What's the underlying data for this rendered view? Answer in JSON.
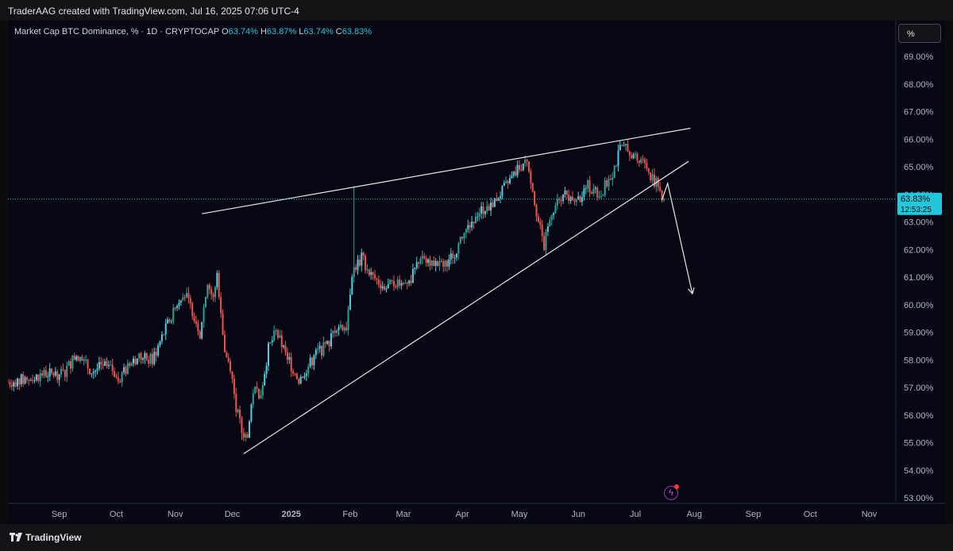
{
  "header": {
    "attribution": "TraderAAG created with TradingView.com, Jul 16, 2025 07:06 UTC-4"
  },
  "legend": {
    "symbol": "Market Cap BTC Dominance, % · 1D · CRYPTOCAP",
    "open_label": "O",
    "open": "63.74%",
    "high_label": "H",
    "high": "63.87%",
    "low_label": "L",
    "low": "63.74%",
    "close_label": "C",
    "close": "63.83%"
  },
  "scale_button": "%",
  "price_tag": {
    "price": "63.83%",
    "countdown": "12:53:25"
  },
  "footer": {
    "brand": "TradingView"
  },
  "colors": {
    "up": "#26a69a",
    "up_bright": "#4dd0e1",
    "down": "#ef5350",
    "background": "#070713",
    "accent": "#26c6da",
    "trendline": "#e6e6e6",
    "flash_icon": "#e040fb"
  },
  "icons": {
    "flash": "lightning-icon",
    "brand": "tradingview-logo-icon"
  },
  "chart_data": {
    "type": "candlestick",
    "title": "Market Cap BTC Dominance, % · 1D · CRYPTOCAP",
    "interval": "1D",
    "x_ticks": [
      "Sep",
      "Oct",
      "Nov",
      "Dec",
      "2025",
      "Feb",
      "Mar",
      "Apr",
      "May",
      "Jun",
      "Jul",
      "Aug",
      "Sep",
      "Oct",
      "Nov"
    ],
    "x_tick_dates": [
      "2024-09-01",
      "2024-10-01",
      "2024-11-01",
      "2024-12-01",
      "2025-01-01",
      "2025-02-01",
      "2025-03-01",
      "2025-04-01",
      "2025-05-01",
      "2025-06-01",
      "2025-07-01",
      "2025-08-01",
      "2025-09-01",
      "2025-10-01",
      "2025-11-01"
    ],
    "y_ticks": [
      "53.00%",
      "54.00%",
      "55.00%",
      "56.00%",
      "57.00%",
      "58.00%",
      "59.00%",
      "60.00%",
      "61.00%",
      "62.00%",
      "63.00%",
      "64.00%",
      "65.00%",
      "66.00%",
      "67.00%",
      "68.00%",
      "69.00%"
    ],
    "ylim": [
      52.8,
      70.3
    ],
    "xlim": [
      "2024-08-05",
      "2025-11-15"
    ],
    "grid": false,
    "current_price": 63.83,
    "series": [
      {
        "name": "BTC Dominance",
        "close_path": [
          {
            "x": "2024-08-05",
            "y": 57.2
          },
          {
            "x": "2024-08-15",
            "y": 57.3
          },
          {
            "x": "2024-08-25",
            "y": 57.5
          },
          {
            "x": "2024-09-03",
            "y": 57.5
          },
          {
            "x": "2024-09-10",
            "y": 58.2
          },
          {
            "x": "2024-09-18",
            "y": 57.6
          },
          {
            "x": "2024-09-25",
            "y": 57.8
          },
          {
            "x": "2024-10-03",
            "y": 57.4
          },
          {
            "x": "2024-10-12",
            "y": 58.1
          },
          {
            "x": "2024-10-20",
            "y": 58.0
          },
          {
            "x": "2024-10-28",
            "y": 59.3
          },
          {
            "x": "2024-11-05",
            "y": 60.5
          },
          {
            "x": "2024-11-10",
            "y": 59.8
          },
          {
            "x": "2024-11-14",
            "y": 59.0
          },
          {
            "x": "2024-11-18",
            "y": 60.8
          },
          {
            "x": "2024-11-21",
            "y": 60.2
          },
          {
            "x": "2024-11-23",
            "y": 61.1
          },
          {
            "x": "2024-11-25",
            "y": 59.8
          },
          {
            "x": "2024-11-27",
            "y": 58.3
          },
          {
            "x": "2024-11-30",
            "y": 57.8
          },
          {
            "x": "2024-12-03",
            "y": 56.3
          },
          {
            "x": "2024-12-06",
            "y": 55.4
          },
          {
            "x": "2024-12-09",
            "y": 55.2
          },
          {
            "x": "2024-12-12",
            "y": 56.9
          },
          {
            "x": "2024-12-16",
            "y": 56.8
          },
          {
            "x": "2024-12-20",
            "y": 58.4
          },
          {
            "x": "2024-12-24",
            "y": 59.0
          },
          {
            "x": "2024-12-28",
            "y": 58.4
          },
          {
            "x": "2025-01-01",
            "y": 57.8
          },
          {
            "x": "2025-01-05",
            "y": 57.3
          },
          {
            "x": "2025-01-10",
            "y": 57.8
          },
          {
            "x": "2025-01-15",
            "y": 58.3
          },
          {
            "x": "2025-01-20",
            "y": 58.5
          },
          {
            "x": "2025-01-25",
            "y": 59.3
          },
          {
            "x": "2025-01-30",
            "y": 59.2
          },
          {
            "x": "2025-02-02",
            "y": 61.2
          },
          {
            "x": "2025-02-07",
            "y": 61.7
          },
          {
            "x": "2025-02-13",
            "y": 61.0
          },
          {
            "x": "2025-02-20",
            "y": 60.6
          },
          {
            "x": "2025-02-27",
            "y": 60.9
          },
          {
            "x": "2025-03-05",
            "y": 60.9
          },
          {
            "x": "2025-03-10",
            "y": 61.8
          },
          {
            "x": "2025-03-15",
            "y": 61.6
          },
          {
            "x": "2025-03-20",
            "y": 61.4
          },
          {
            "x": "2025-03-26",
            "y": 61.7
          },
          {
            "x": "2025-04-01",
            "y": 62.4
          },
          {
            "x": "2025-04-08",
            "y": 63.3
          },
          {
            "x": "2025-04-15",
            "y": 63.6
          },
          {
            "x": "2025-04-22",
            "y": 64.1
          },
          {
            "x": "2025-04-28",
            "y": 64.7
          },
          {
            "x": "2025-05-05",
            "y": 65.3
          },
          {
            "x": "2025-05-08",
            "y": 64.2
          },
          {
            "x": "2025-05-11",
            "y": 63.0
          },
          {
            "x": "2025-05-14",
            "y": 62.1
          },
          {
            "x": "2025-05-18",
            "y": 63.4
          },
          {
            "x": "2025-05-24",
            "y": 64.0
          },
          {
            "x": "2025-05-30",
            "y": 63.6
          },
          {
            "x": "2025-06-06",
            "y": 64.3
          },
          {
            "x": "2025-06-12",
            "y": 64.0
          },
          {
            "x": "2025-06-18",
            "y": 64.6
          },
          {
            "x": "2025-06-23",
            "y": 65.6
          },
          {
            "x": "2025-06-27",
            "y": 65.7
          },
          {
            "x": "2025-07-02",
            "y": 65.3
          },
          {
            "x": "2025-07-07",
            "y": 65.0
          },
          {
            "x": "2025-07-10",
            "y": 64.6
          },
          {
            "x": "2025-07-13",
            "y": 64.3
          },
          {
            "x": "2025-07-16",
            "y": 63.83
          }
        ],
        "key_points": {
          "spike_high": {
            "x": "2025-02-03",
            "y": 64.3
          },
          "low": {
            "x": "2024-12-06",
            "y": 55.1
          },
          "high": {
            "x": "2025-06-27",
            "y": 66.0
          }
        }
      }
    ],
    "annotations": {
      "upper_trendline": [
        {
          "x": "2024-11-15",
          "y": 63.3
        },
        {
          "x": "2025-07-30",
          "y": 66.4
        }
      ],
      "lower_trendline": [
        {
          "x": "2024-12-07",
          "y": 54.6
        },
        {
          "x": "2025-07-29",
          "y": 65.2
        }
      ],
      "projection_arrow": [
        {
          "x": "2025-07-15",
          "y": 63.8
        },
        {
          "x": "2025-07-18",
          "y": 64.4
        },
        {
          "x": "2025-07-31",
          "y": 60.4
        }
      ]
    }
  }
}
